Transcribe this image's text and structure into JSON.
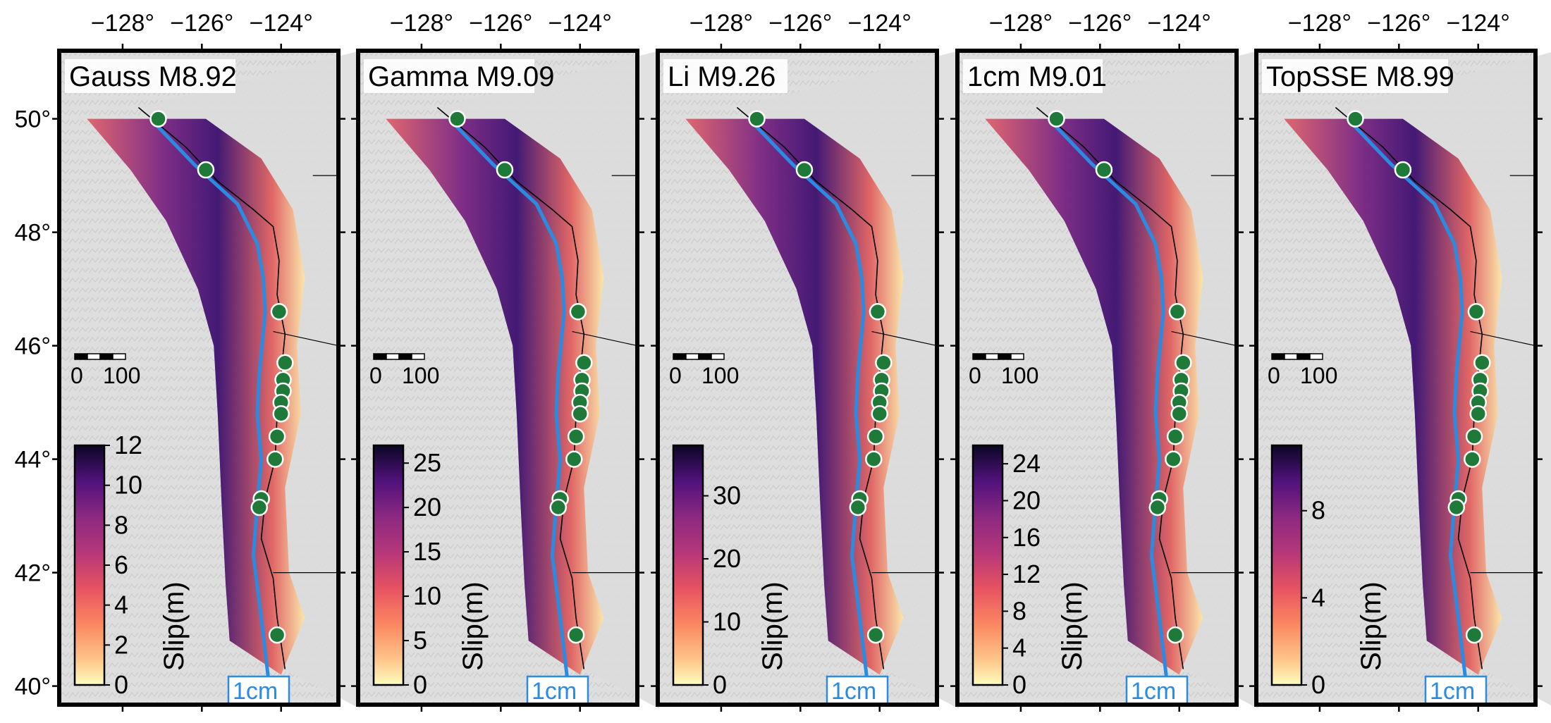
{
  "figure": {
    "lon_ticks": [
      "−128°",
      "−126°",
      "−124°"
    ],
    "lat_ticks": [
      "50°",
      "48°",
      "46°",
      "44°",
      "42°",
      "40°"
    ],
    "colorbar_label": "Slip(m)",
    "scalebar_labels": [
      "0",
      "100"
    ],
    "vector_scale_label": "1cm",
    "colors": {
      "trench": "#2b8be0",
      "station_fill": "#1f7a3a",
      "station_stroke": "#ffffff",
      "frame": "#000000",
      "land": "#dcdcdc",
      "ocean": "#d6d6d6"
    },
    "colormap": "magma_r (light yellow = 0, black = max)"
  },
  "panels": [
    {
      "title": "Gauss M8.92",
      "model": "Gauss",
      "magnitude": "M8.92",
      "cbar_max": 12,
      "cbar_ticks": [
        "12",
        "10",
        "8",
        "6",
        "4",
        "2",
        "0"
      ]
    },
    {
      "title": "Gamma M9.09",
      "model": "Gamma",
      "magnitude": "M9.09",
      "cbar_max": 27,
      "cbar_ticks": [
        "25",
        "20",
        "15",
        "10",
        "5",
        "0"
      ]
    },
    {
      "title": "Li M9.26",
      "model": "Li",
      "magnitude": "M9.26",
      "cbar_max": 38,
      "cbar_ticks": [
        "30",
        "20",
        "10",
        "0"
      ]
    },
    {
      "title": "1cm M9.01",
      "model": "1cm",
      "magnitude": "M9.01",
      "cbar_max": 26,
      "cbar_ticks": [
        "24",
        "20",
        "16",
        "12",
        "8",
        "4",
        "0"
      ]
    },
    {
      "title": "TopSSE M8.99",
      "model": "TopSSE",
      "magnitude": "M8.99",
      "cbar_max": 11,
      "cbar_ticks": [
        "8",
        "4",
        "0"
      ]
    }
  ]
}
